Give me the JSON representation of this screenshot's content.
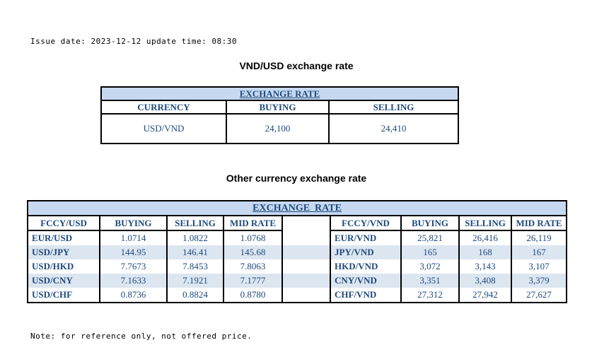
{
  "meta": {
    "issue_line": "Issue date: 2023-12-12 update time: 08:30",
    "note_line": "Note: for reference only, not offered price."
  },
  "colors": {
    "text_blue": "#1F497D",
    "banner_bg": "#C6D9F1",
    "stripe_bg": "#DCE6F1",
    "border": "#000000"
  },
  "usd_table": {
    "title": "VND/USD exchange rate",
    "banner": "EXCHANGE RATE",
    "headers": [
      "CURRENCY",
      "BUYING",
      "SELLING"
    ],
    "rows": [
      [
        "USD/VND",
        "24,100",
        "24,410"
      ]
    ]
  },
  "other_table": {
    "title": "Other currency exchange rate",
    "banner": "EXCHANGE  RATE",
    "left": {
      "headers": [
        "FCCY/USD",
        "BUYING",
        "SELLING",
        "MID RATE"
      ],
      "rows": [
        [
          "EUR/USD",
          "1.0714",
          "1.0822",
          "1.0768"
        ],
        [
          "USD/JPY",
          "144.95",
          "146.41",
          "145.68"
        ],
        [
          "USD/HKD",
          "7.7673",
          "7.8453",
          "7.8063"
        ],
        [
          "USD/CNY",
          "7.1633",
          "7.1921",
          "7.1777"
        ],
        [
          "USD/CHF",
          "0.8736",
          "0.8824",
          "0.8780"
        ]
      ]
    },
    "right": {
      "headers": [
        "FCCY/VND",
        "BUYING",
        "SELLING",
        "MID RATE"
      ],
      "rows": [
        [
          "EUR/VND",
          "25,821",
          "26,416",
          "26,119"
        ],
        [
          "JPY/VND",
          "165",
          "168",
          "167"
        ],
        [
          "HKD/VND",
          "3,072",
          "3,143",
          "3,107"
        ],
        [
          "CNY/VND",
          "3,351",
          "3,408",
          "3,379"
        ],
        [
          "CHF/VND",
          "27,312",
          "27,942",
          "27,627"
        ]
      ]
    }
  }
}
